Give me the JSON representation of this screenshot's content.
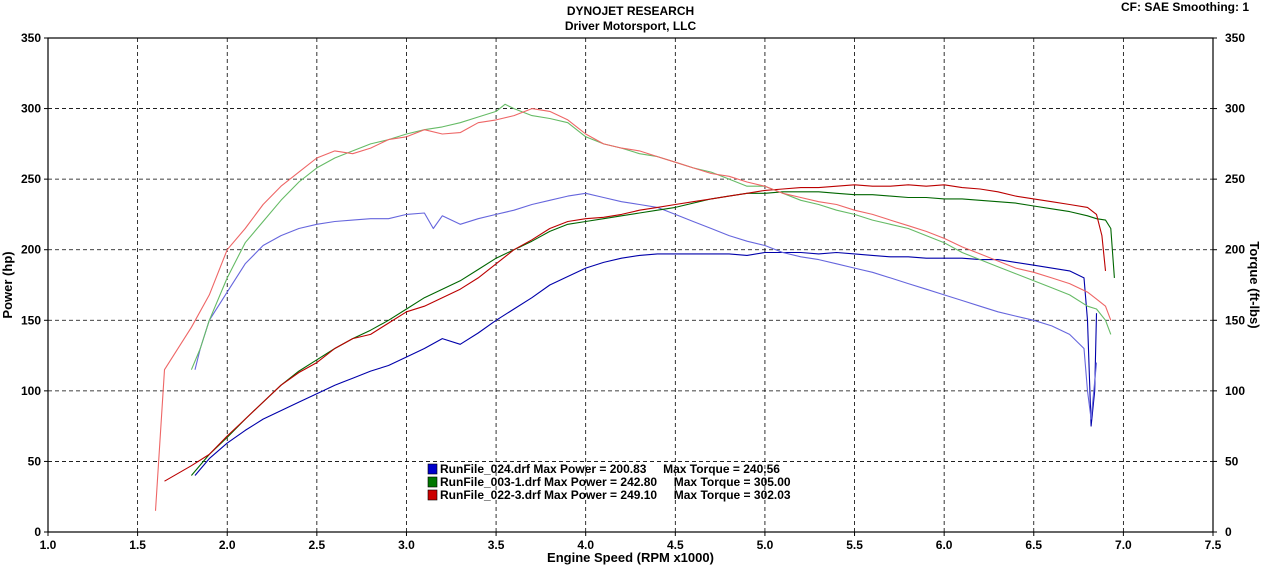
{
  "header": {
    "title": "DYNOJET RESEARCH",
    "subtitle": "Driver Motorsport, LLC",
    "settings": "CF: SAE  Smoothing: 1"
  },
  "chart_data": {
    "type": "line",
    "title": "DYNOJET RESEARCH",
    "subtitle": "Driver Motorsport, LLC",
    "xlabel": "Engine Speed (RPM x1000)",
    "ylabel_left": "Power (hp)",
    "ylabel_right": "Torque (ft-lbs)",
    "xlim": [
      1.0,
      7.5
    ],
    "ylim": [
      0,
      350
    ],
    "xticks": [
      "1.0",
      "1.5",
      "2.0",
      "2.5",
      "3.0",
      "3.5",
      "4.0",
      "4.5",
      "5.0",
      "5.5",
      "6.0",
      "6.5",
      "7.0",
      "7.5"
    ],
    "yticks": [
      "0",
      "50",
      "100",
      "150",
      "200",
      "250",
      "300",
      "350"
    ],
    "grid": true,
    "legend_position": "bottom-center",
    "legend": [
      {
        "file": "RunFile_024.drf",
        "max_power": "200.83",
        "max_torque": "240.56",
        "color": "#0000cc",
        "text": "RunFile_024.drf Max Power = 200.83     Max Torque = 240.56"
      },
      {
        "file": "RunFile_003-1.drf",
        "max_power": "242.80",
        "max_torque": "305.00",
        "color": "#007700",
        "text": "RunFile_003-1.drf Max Power = 242.80     Max Torque = 305.00"
      },
      {
        "file": "RunFile_022-3.drf",
        "max_power": "249.10",
        "max_torque": "302.03",
        "color": "#cc0000",
        "text": "RunFile_022-3.drf Max Power = 249.10     Max Torque = 302.03"
      }
    ],
    "series": [
      {
        "run": "RunFile_024.drf",
        "measure": "power",
        "color": "#0000aa",
        "x": [
          1.82,
          1.9,
          2.0,
          2.1,
          2.2,
          2.3,
          2.4,
          2.5,
          2.6,
          2.7,
          2.8,
          2.9,
          3.0,
          3.1,
          3.2,
          3.3,
          3.4,
          3.5,
          3.6,
          3.7,
          3.8,
          3.9,
          4.0,
          4.1,
          4.2,
          4.3,
          4.4,
          4.5,
          4.6,
          4.7,
          4.8,
          4.9,
          5.0,
          5.1,
          5.2,
          5.3,
          5.4,
          5.5,
          5.6,
          5.7,
          5.8,
          5.9,
          6.0,
          6.1,
          6.2,
          6.3,
          6.4,
          6.5,
          6.6,
          6.7,
          6.78,
          6.8,
          6.82,
          6.84,
          6.85
        ],
        "y": [
          40,
          52,
          63,
          72,
          80,
          86,
          92,
          98,
          104,
          109,
          114,
          118,
          124,
          130,
          137,
          133,
          141,
          150,
          158,
          166,
          175,
          181,
          187,
          191,
          194,
          196,
          197,
          197,
          197,
          197,
          197,
          196,
          198,
          198,
          198,
          197,
          198,
          197,
          196,
          195,
          195,
          194,
          194,
          194,
          193,
          193,
          191,
          189,
          187,
          185,
          180,
          150,
          75,
          100,
          155
        ]
      },
      {
        "run": "RunFile_024.drf",
        "measure": "torque",
        "color": "#6666dd",
        "x": [
          1.82,
          1.85,
          1.9,
          2.0,
          2.1,
          2.2,
          2.3,
          2.4,
          2.5,
          2.6,
          2.7,
          2.8,
          2.9,
          3.0,
          3.1,
          3.15,
          3.2,
          3.3,
          3.4,
          3.5,
          3.6,
          3.7,
          3.8,
          3.9,
          4.0,
          4.1,
          4.2,
          4.3,
          4.4,
          4.5,
          4.6,
          4.7,
          4.8,
          4.9,
          5.0,
          5.1,
          5.2,
          5.3,
          5.4,
          5.5,
          5.6,
          5.7,
          5.8,
          5.9,
          6.0,
          6.1,
          6.2,
          6.3,
          6.4,
          6.5,
          6.6,
          6.7,
          6.78,
          6.8,
          6.82,
          6.85
        ],
        "y": [
          115,
          130,
          150,
          170,
          190,
          203,
          210,
          215,
          218,
          220,
          221,
          222,
          222,
          225,
          226,
          215,
          224,
          218,
          222,
          225,
          228,
          232,
          235,
          238,
          240,
          237,
          234,
          232,
          230,
          225,
          220,
          215,
          210,
          206,
          203,
          198,
          195,
          193,
          190,
          187,
          184,
          180,
          176,
          172,
          168,
          164,
          160,
          156,
          153,
          150,
          146,
          140,
          130,
          100,
          80,
          120
        ]
      },
      {
        "run": "RunFile_003-1.drf",
        "measure": "power",
        "color": "#006600",
        "x": [
          1.8,
          1.9,
          2.0,
          2.1,
          2.2,
          2.3,
          2.4,
          2.5,
          2.6,
          2.7,
          2.8,
          2.9,
          3.0,
          3.1,
          3.2,
          3.3,
          3.4,
          3.5,
          3.6,
          3.7,
          3.8,
          3.9,
          4.0,
          4.1,
          4.2,
          4.3,
          4.4,
          4.5,
          4.6,
          4.7,
          4.8,
          4.9,
          5.0,
          5.1,
          5.2,
          5.3,
          5.4,
          5.5,
          5.6,
          5.7,
          5.8,
          5.9,
          6.0,
          6.1,
          6.2,
          6.3,
          6.4,
          6.5,
          6.6,
          6.7,
          6.8,
          6.85,
          6.9,
          6.93,
          6.95
        ],
        "y": [
          40,
          55,
          67,
          80,
          92,
          104,
          114,
          122,
          130,
          137,
          143,
          150,
          158,
          166,
          172,
          178,
          186,
          194,
          200,
          206,
          213,
          218,
          220,
          222,
          224,
          226,
          228,
          230,
          233,
          236,
          238,
          240,
          240,
          241,
          241,
          241,
          240,
          239,
          239,
          238,
          237,
          237,
          236,
          236,
          235,
          234,
          233,
          231,
          229,
          227,
          224,
          222,
          221,
          215,
          180
        ]
      },
      {
        "run": "RunFile_003-1.drf",
        "measure": "torque",
        "color": "#66bb66",
        "x": [
          1.8,
          1.85,
          1.9,
          2.0,
          2.1,
          2.2,
          2.3,
          2.4,
          2.5,
          2.6,
          2.7,
          2.8,
          2.9,
          3.0,
          3.1,
          3.2,
          3.3,
          3.4,
          3.5,
          3.55,
          3.6,
          3.7,
          3.8,
          3.9,
          4.0,
          4.1,
          4.2,
          4.3,
          4.4,
          4.5,
          4.6,
          4.7,
          4.8,
          4.9,
          5.0,
          5.1,
          5.2,
          5.3,
          5.4,
          5.5,
          5.6,
          5.7,
          5.8,
          5.9,
          6.0,
          6.1,
          6.2,
          6.3,
          6.4,
          6.5,
          6.6,
          6.7,
          6.8,
          6.85,
          6.9,
          6.93
        ],
        "y": [
          115,
          130,
          150,
          180,
          205,
          220,
          235,
          248,
          258,
          265,
          270,
          275,
          278,
          282,
          285,
          287,
          290,
          294,
          298,
          303,
          300,
          295,
          293,
          290,
          280,
          275,
          272,
          268,
          266,
          262,
          258,
          255,
          250,
          245,
          245,
          240,
          235,
          232,
          228,
          225,
          221,
          218,
          215,
          210,
          205,
          198,
          193,
          188,
          183,
          178,
          173,
          168,
          160,
          158,
          150,
          140
        ]
      },
      {
        "run": "RunFile_022-3.drf",
        "measure": "power",
        "color": "#bb0000",
        "x": [
          1.65,
          1.8,
          1.9,
          2.0,
          2.1,
          2.2,
          2.3,
          2.4,
          2.5,
          2.6,
          2.7,
          2.8,
          2.9,
          3.0,
          3.1,
          3.2,
          3.3,
          3.4,
          3.5,
          3.6,
          3.7,
          3.8,
          3.9,
          4.0,
          4.1,
          4.2,
          4.3,
          4.4,
          4.5,
          4.6,
          4.7,
          4.8,
          4.9,
          5.0,
          5.1,
          5.2,
          5.3,
          5.4,
          5.5,
          5.6,
          5.7,
          5.8,
          5.9,
          6.0,
          6.1,
          6.2,
          6.3,
          6.4,
          6.5,
          6.6,
          6.7,
          6.8,
          6.85,
          6.88,
          6.9
        ],
        "y": [
          36,
          47,
          55,
          68,
          80,
          92,
          104,
          113,
          120,
          130,
          137,
          140,
          148,
          156,
          160,
          166,
          172,
          180,
          190,
          200,
          207,
          215,
          220,
          222,
          223,
          225,
          228,
          230,
          232,
          234,
          236,
          238,
          240,
          242,
          243,
          244,
          244,
          245,
          246,
          245,
          245,
          246,
          245,
          246,
          244,
          243,
          241,
          238,
          236,
          234,
          232,
          230,
          225,
          210,
          185
        ]
      },
      {
        "run": "RunFile_022-3.drf",
        "measure": "torque",
        "color": "#ee6666",
        "x": [
          1.6,
          1.65,
          1.8,
          1.9,
          2.0,
          2.1,
          2.2,
          2.3,
          2.4,
          2.5,
          2.6,
          2.7,
          2.8,
          2.9,
          3.0,
          3.1,
          3.2,
          3.3,
          3.4,
          3.5,
          3.6,
          3.7,
          3.8,
          3.9,
          4.0,
          4.1,
          4.2,
          4.3,
          4.4,
          4.5,
          4.6,
          4.7,
          4.8,
          4.9,
          5.0,
          5.1,
          5.2,
          5.3,
          5.4,
          5.5,
          5.6,
          5.7,
          5.8,
          5.9,
          6.0,
          6.1,
          6.2,
          6.3,
          6.4,
          6.5,
          6.6,
          6.7,
          6.8,
          6.85,
          6.9,
          6.93
        ],
        "y": [
          15,
          115,
          145,
          168,
          200,
          215,
          232,
          245,
          255,
          265,
          270,
          268,
          272,
          278,
          280,
          285,
          282,
          283,
          290,
          292,
          295,
          300,
          298,
          292,
          282,
          275,
          272,
          270,
          266,
          262,
          258,
          254,
          252,
          248,
          245,
          240,
          237,
          234,
          232,
          228,
          225,
          221,
          217,
          213,
          208,
          202,
          197,
          192,
          187,
          184,
          180,
          176,
          170,
          165,
          160,
          150
        ]
      }
    ]
  }
}
